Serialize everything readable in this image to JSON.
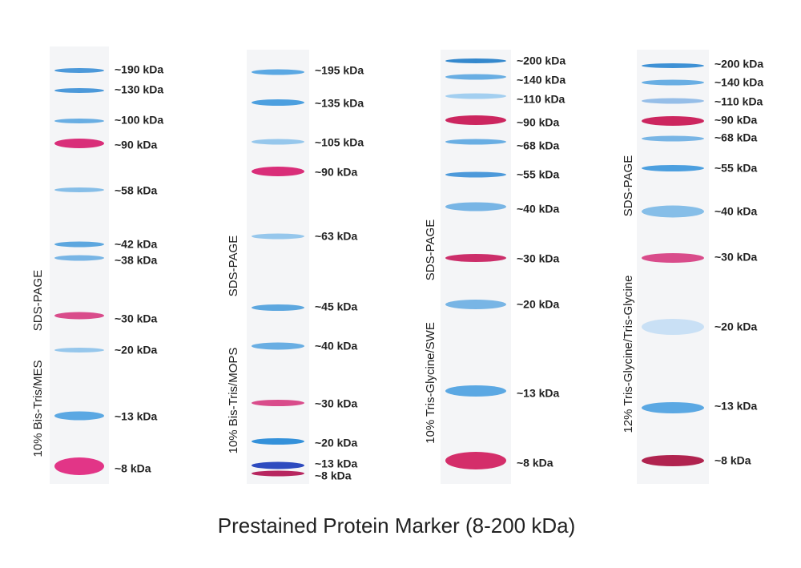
{
  "title": "Prestained Protein Marker (8-200 kDa)",
  "lanes": [
    {
      "gel": "10% Bis-Tris/MES",
      "method": "SDS-PAGE",
      "bands": [
        {
          "label": "~190 kDa",
          "color": "#3a8fd6"
        },
        {
          "label": "~130 kDa",
          "color": "#3a8fd6"
        },
        {
          "label": "~100 kDa",
          "color": "#5aa6e0"
        },
        {
          "label": "~90 kDa",
          "color": "#d6186a"
        },
        {
          "label": "~58 kDa",
          "color": "#7ab8e6"
        },
        {
          "label": "~42 kDa",
          "color": "#4d9fdc"
        },
        {
          "label": "~38 kDa",
          "color": "#6aaee2"
        },
        {
          "label": "~30 kDa",
          "color": "#d63a7e"
        },
        {
          "label": "~20 kDa",
          "color": "#8cc2ea"
        },
        {
          "label": "~13 kDa",
          "color": "#4aa0e0"
        },
        {
          "label": "~8 kDa",
          "color": "#e0207a"
        }
      ]
    },
    {
      "gel": "10% Bis-Tris/MOPS",
      "method": "SDS-PAGE",
      "bands": [
        {
          "label": "~195 kDa",
          "color": "#4aa0e0"
        },
        {
          "label": "~135 kDa",
          "color": "#3a96dc"
        },
        {
          "label": "~105 kDa",
          "color": "#8cc2ea"
        },
        {
          "label": "~90 kDa",
          "color": "#d6186a"
        },
        {
          "label": "~63 kDa",
          "color": "#8cc2ea"
        },
        {
          "label": "~45 kDa",
          "color": "#4d9fdc"
        },
        {
          "label": "~40 kDa",
          "color": "#5aa6e0"
        },
        {
          "label": "~30 kDa",
          "color": "#d63a7e"
        },
        {
          "label": "~20 kDa",
          "color": "#1f86d6"
        },
        {
          "label": "~13 kDa",
          "color": "#1838b8"
        },
        {
          "label": "~8 kDa",
          "color": "#b0104e"
        }
      ]
    },
    {
      "gel": "10% Tris-Glycine/SWE",
      "method": "SDS-PAGE",
      "bands": [
        {
          "label": "~200 kDa",
          "color": "#1f7cc8"
        },
        {
          "label": "~140 kDa",
          "color": "#5aa6e0"
        },
        {
          "label": "~110 kDa",
          "color": "#9acbee"
        },
        {
          "label": "~90 kDa",
          "color": "#c8104e"
        },
        {
          "label": "~68 kDa",
          "color": "#5aa6e0"
        },
        {
          "label": "~55 kDa",
          "color": "#3a8fd6"
        },
        {
          "label": "~40 kDa",
          "color": "#6aaee2"
        },
        {
          "label": "~30 kDa",
          "color": "#c8185a"
        },
        {
          "label": "~20 kDa",
          "color": "#6aaee2"
        },
        {
          "label": "~13 kDa",
          "color": "#4aa0e0"
        },
        {
          "label": "~8 kDa",
          "color": "#d0185a"
        }
      ]
    },
    {
      "gel": "12% Tris-Glycine/Tris-Glycine",
      "method": "SDS-PAGE",
      "bands": [
        {
          "label": "~200 kDa",
          "color": "#2a86d0"
        },
        {
          "label": "~140 kDa",
          "color": "#5aa6e0"
        },
        {
          "label": "~110 kDa",
          "color": "#8cb8e6"
        },
        {
          "label": "~90 kDa",
          "color": "#c8104e"
        },
        {
          "label": "~68 kDa",
          "color": "#6aaee2"
        },
        {
          "label": "~55 kDa",
          "color": "#3a96dc"
        },
        {
          "label": "~40 kDa",
          "color": "#7ab8e6"
        },
        {
          "label": "~30 kDa",
          "color": "#d63a7e"
        },
        {
          "label": "~20 kDa",
          "color": "#c4def4"
        },
        {
          "label": "~13 kDa",
          "color": "#4aa0e0"
        },
        {
          "label": "~8 kDa",
          "color": "#a80c3c"
        }
      ]
    }
  ]
}
